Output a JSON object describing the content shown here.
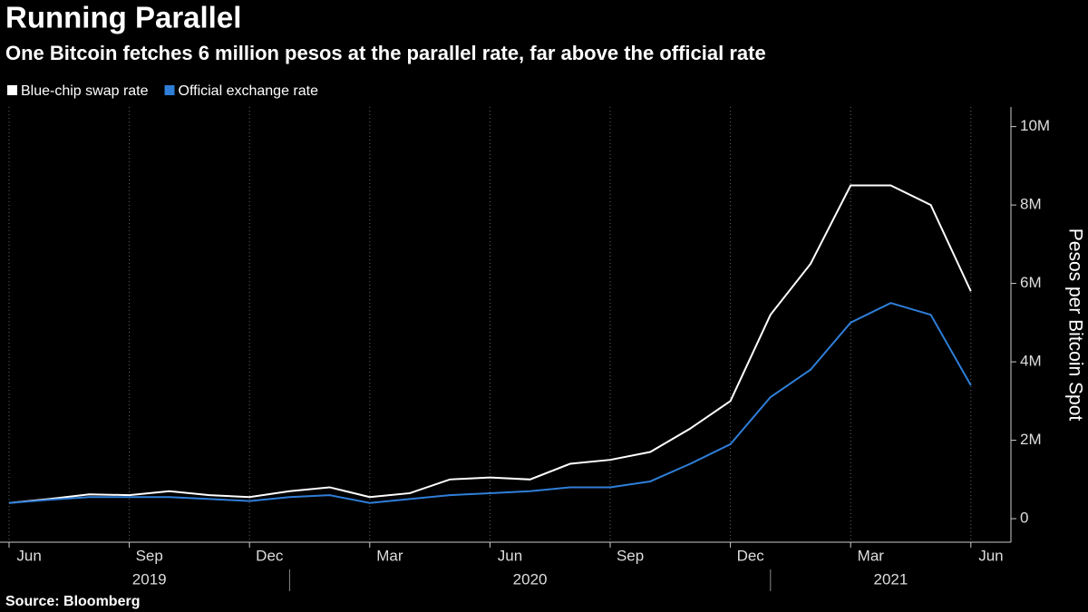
{
  "title": "Running Parallel",
  "subtitle": "One Bitcoin fetches 6 million pesos at the parallel rate, far above the official rate",
  "source": "Source: Bloomberg",
  "chart_data": {
    "type": "line",
    "y_label": "Pesos per Bitcoin Spot",
    "x": [
      "2019-06",
      "2019-07",
      "2019-08",
      "2019-09",
      "2019-10",
      "2019-11",
      "2019-12",
      "2020-01",
      "2020-02",
      "2020-03",
      "2020-04",
      "2020-05",
      "2020-06",
      "2020-07",
      "2020-08",
      "2020-09",
      "2020-10",
      "2020-11",
      "2020-12",
      "2021-01",
      "2021-02",
      "2021-03",
      "2021-04",
      "2021-05",
      "2021-06"
    ],
    "series": [
      {
        "name": "Blue-chip swap rate",
        "color": "#ffffff",
        "values": [
          0.4,
          0.5,
          0.62,
          0.6,
          0.7,
          0.6,
          0.55,
          0.7,
          0.8,
          0.55,
          0.65,
          1.0,
          1.05,
          1.0,
          1.4,
          1.5,
          1.7,
          2.3,
          3.0,
          5.2,
          6.5,
          8.5,
          8.5,
          8.0,
          5.8
        ]
      },
      {
        "name": "Official exchange rate",
        "color": "#2f7ed8",
        "values": [
          0.4,
          0.48,
          0.55,
          0.55,
          0.55,
          0.5,
          0.45,
          0.55,
          0.6,
          0.4,
          0.5,
          0.6,
          0.65,
          0.7,
          0.8,
          0.8,
          0.95,
          1.4,
          1.9,
          3.1,
          3.8,
          5.0,
          5.5,
          5.2,
          3.4
        ]
      }
    ],
    "xlim": [
      "2019-06",
      "2021-07"
    ],
    "xticks": [
      {
        "value": "2019-06",
        "label": "Jun"
      },
      {
        "value": "2019-09",
        "label": "Sep"
      },
      {
        "value": "2019-12",
        "label": "Dec"
      },
      {
        "value": "2020-03",
        "label": "Mar"
      },
      {
        "value": "2020-06",
        "label": "Jun"
      },
      {
        "value": "2020-09",
        "label": "Sep"
      },
      {
        "value": "2020-12",
        "label": "Dec"
      },
      {
        "value": "2021-03",
        "label": "Mar"
      },
      {
        "value": "2021-06",
        "label": "Jun"
      }
    ],
    "years": [
      "2019",
      "2020",
      "2021"
    ],
    "ylim": [
      -0.6,
      10.5
    ],
    "yticks": [
      0,
      {
        "value": 2,
        "label": "2M"
      },
      {
        "value": 4,
        "label": "4M"
      },
      {
        "value": 6,
        "label": "6M"
      },
      {
        "value": 8,
        "label": "8M"
      },
      {
        "value": 10,
        "label": "10M"
      }
    ],
    "grid": true
  }
}
